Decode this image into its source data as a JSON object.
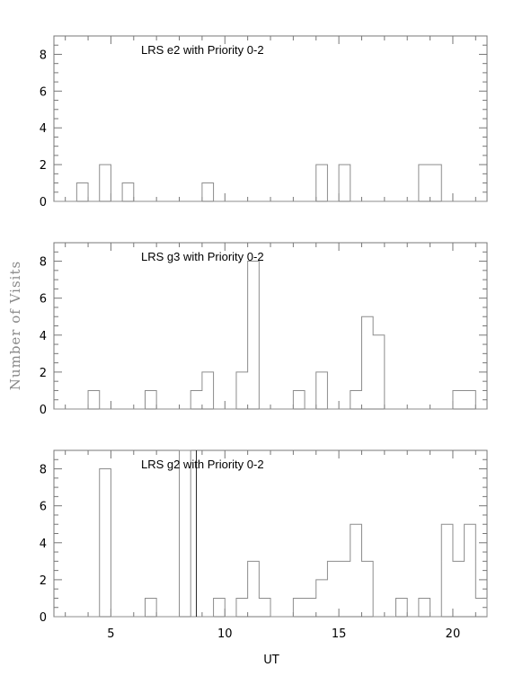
{
  "chart_data": {
    "type": "histogram",
    "xlabel": "UT",
    "ylabel": "Number of Visits",
    "xlim": [
      2.5,
      21.5
    ],
    "ylim": [
      0,
      9
    ],
    "bin_width": 0.5,
    "x_ticks": [
      5,
      10,
      15,
      20
    ],
    "y_ticks": [
      0,
      2,
      4,
      6,
      8
    ],
    "grid": false,
    "panels": [
      {
        "title": "LRS e2 with Priority 0-2",
        "bins": [
          {
            "x": 3.75,
            "y": 1
          },
          {
            "x": 4.75,
            "y": 2
          },
          {
            "x": 5.75,
            "y": 1
          },
          {
            "x": 9.25,
            "y": 1
          },
          {
            "x": 14.25,
            "y": 2
          },
          {
            "x": 15.25,
            "y": 2
          },
          {
            "x": 18.75,
            "y": 2
          },
          {
            "x": 19.25,
            "y": 2
          }
        ]
      },
      {
        "title": "LRS g3 with Priority 0-2",
        "bins": [
          {
            "x": 4.25,
            "y": 1
          },
          {
            "x": 6.75,
            "y": 1
          },
          {
            "x": 8.75,
            "y": 1
          },
          {
            "x": 9.25,
            "y": 2
          },
          {
            "x": 10.75,
            "y": 2
          },
          {
            "x": 11.25,
            "y": 8
          },
          {
            "x": 13.25,
            "y": 1
          },
          {
            "x": 14.25,
            "y": 2
          },
          {
            "x": 15.75,
            "y": 1
          },
          {
            "x": 16.25,
            "y": 5
          },
          {
            "x": 16.75,
            "y": 4
          },
          {
            "x": 20.25,
            "y": 1
          },
          {
            "x": 20.75,
            "y": 1
          }
        ]
      },
      {
        "title": "LRS g2 with Priority 0-2",
        "bins": [
          {
            "x": 4.75,
            "y": 8
          },
          {
            "x": 6.75,
            "y": 1
          },
          {
            "x": 8.25,
            "y": 9
          },
          {
            "x": 9.75,
            "y": 1
          },
          {
            "x": 10.75,
            "y": 1
          },
          {
            "x": 11.25,
            "y": 3
          },
          {
            "x": 11.75,
            "y": 1
          },
          {
            "x": 13.25,
            "y": 1
          },
          {
            "x": 13.75,
            "y": 1
          },
          {
            "x": 14.25,
            "y": 2
          },
          {
            "x": 14.75,
            "y": 3
          },
          {
            "x": 15.25,
            "y": 3
          },
          {
            "x": 15.75,
            "y": 5
          },
          {
            "x": 16.25,
            "y": 3
          },
          {
            "x": 17.75,
            "y": 1
          },
          {
            "x": 18.75,
            "y": 1
          },
          {
            "x": 19.75,
            "y": 5
          },
          {
            "x": 20.25,
            "y": 3
          },
          {
            "x": 20.75,
            "y": 5
          },
          {
            "x": 21.25,
            "y": 1
          }
        ],
        "vline_x": 8.75
      }
    ]
  }
}
